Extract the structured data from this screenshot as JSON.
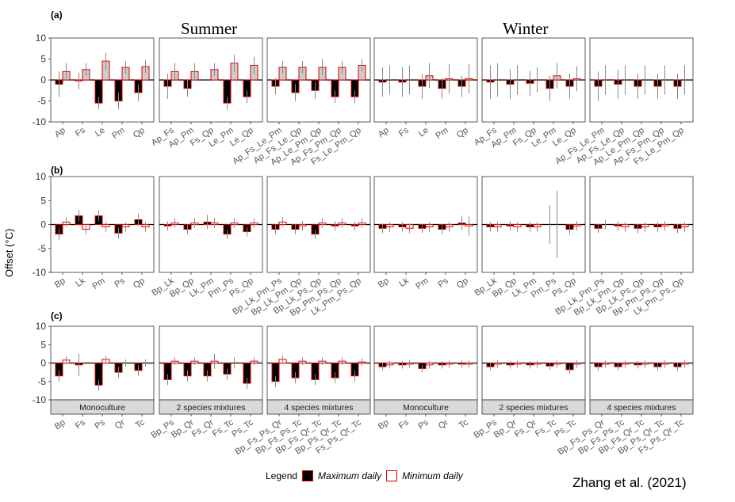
{
  "figure": {
    "y_axis_label": "Offset (°C)",
    "season_labels": [
      "Summer",
      "Winter"
    ],
    "credit": "Zhang et al. (2021)",
    "legend": {
      "title": "Legend",
      "max_label": "Maximum daily",
      "min_label": "Minimum daily"
    },
    "colors": {
      "max_fill": "#000000",
      "max_stroke": "#e00000",
      "min_fill": "#cccccc",
      "min_fill_open": "#ffffff",
      "min_stroke": "#e00000",
      "errorbar": "#888888",
      "strip": "#d9d9d9"
    }
  },
  "chart_data": [
    {
      "type": "bar",
      "row": "(a)",
      "season": "Summer",
      "diversity": "Monoculture",
      "ylim": [
        -10,
        10
      ],
      "yticks": [
        -10,
        -5,
        0,
        5,
        10
      ],
      "min_style": "grey",
      "categories": [
        "Ap",
        "Fs",
        "Le",
        "Pm",
        "Qp"
      ],
      "series": [
        {
          "name": "Maximum daily",
          "values": [
            -1.0,
            -0.2,
            -5.5,
            -5.0,
            -3.0
          ],
          "err": [
            3,
            2,
            1.5,
            2,
            2
          ]
        },
        {
          "name": "Minimum daily",
          "values": [
            2.0,
            2.5,
            4.5,
            3.0,
            3.2
          ],
          "err": [
            2,
            1.5,
            2,
            1.5,
            1.5
          ]
        }
      ]
    },
    {
      "type": "bar",
      "row": "(a)",
      "season": "Summer",
      "diversity": "2 species mixtures",
      "ylim": [
        -10,
        10
      ],
      "min_style": "grey",
      "categories": [
        "Ap_Fs",
        "Ap_Pm",
        "Fs_Qp",
        "Le_Pm",
        "Le_Qp"
      ],
      "series": [
        {
          "name": "Maximum daily",
          "values": [
            -1.5,
            -2.0,
            0,
            -5.5,
            -4.0
          ],
          "err": [
            3,
            2,
            0,
            1.5,
            1.5
          ]
        },
        {
          "name": "Minimum daily",
          "values": [
            2.0,
            2.0,
            2.5,
            4.0,
            3.5
          ],
          "err": [
            2,
            2,
            1.5,
            2,
            2
          ]
        }
      ]
    },
    {
      "type": "bar",
      "row": "(a)",
      "season": "Summer",
      "diversity": "4 species mixtures",
      "ylim": [
        -10,
        10
      ],
      "min_style": "grey",
      "categories": [
        "Ap_Fs_Le_Pm",
        "Ap_Fs_Le_Qp",
        "Ap_Le_Pm_Qp",
        "Ap_Fs_Pm_Qp",
        "Fs_Le_Pm_Qp"
      ],
      "series": [
        {
          "name": "Maximum daily",
          "values": [
            -1.5,
            -3.0,
            -2.5,
            -4.0,
            -4.0
          ],
          "err": [
            2,
            2,
            2,
            1.5,
            1.5
          ]
        },
        {
          "name": "Minimum daily",
          "values": [
            3.0,
            3.0,
            3.0,
            3.0,
            3.5
          ],
          "err": [
            1.5,
            1.5,
            2,
            1.5,
            1.5
          ]
        }
      ]
    },
    {
      "type": "bar",
      "row": "(a)",
      "season": "Winter",
      "diversity": "Monoculture",
      "ylim": [
        -10,
        10
      ],
      "min_style": "grey",
      "categories": [
        "Ap",
        "Fs",
        "Le",
        "Pm",
        "Qp"
      ],
      "series": [
        {
          "name": "Maximum daily",
          "values": [
            -0.5,
            -0.5,
            -1.5,
            -2.0,
            -1.5
          ],
          "err": [
            3.5,
            3.5,
            3,
            2.5,
            2.5
          ]
        },
        {
          "name": "Minimum daily",
          "values": [
            0,
            0,
            1.0,
            0.3,
            0.3
          ],
          "err": [
            3.5,
            3.5,
            3,
            3.5,
            3.5
          ]
        }
      ]
    },
    {
      "type": "bar",
      "row": "(a)",
      "season": "Winter",
      "diversity": "2 species mixtures",
      "ylim": [
        -10,
        10
      ],
      "min_style": "grey",
      "categories": [
        "Ap_Fs",
        "Ap_Pm",
        "Fs_Qp",
        "Le_Pm",
        "Le_Qp"
      ],
      "series": [
        {
          "name": "Maximum daily",
          "values": [
            -0.5,
            -1.0,
            -0.8,
            -2.0,
            -1.5
          ],
          "err": [
            4,
            3.5,
            3,
            3,
            3
          ]
        },
        {
          "name": "Minimum daily",
          "values": [
            0,
            0,
            0,
            1.0,
            0.3
          ],
          "err": [
            4,
            3.5,
            3,
            3,
            3
          ]
        }
      ]
    },
    {
      "type": "bar",
      "row": "(a)",
      "season": "Winter",
      "diversity": "4 species mixtures",
      "ylim": [
        -10,
        10
      ],
      "min_style": "grey",
      "categories": [
        "Ap_Fs_Le_Pm",
        "Ap_Fs_Le_Qp",
        "Ap_Le_Pm_Qp",
        "Ap_Fs_Pm_Qp",
        "Fs_Le_Pm_Qp"
      ],
      "series": [
        {
          "name": "Maximum daily",
          "values": [
            -1.5,
            -1.0,
            -1.5,
            -1.5,
            -1.5
          ],
          "err": [
            3.5,
            3.5,
            3,
            3,
            3
          ]
        },
        {
          "name": "Minimum daily",
          "values": [
            0,
            0,
            0,
            0,
            0
          ],
          "err": [
            3.5,
            3.5,
            3.5,
            3.5,
            3.5
          ]
        }
      ]
    },
    {
      "type": "bar",
      "row": "(b)",
      "season": "Summer",
      "diversity": "Monoculture",
      "ylim": [
        -10,
        10
      ],
      "min_style": "open",
      "categories": [
        "Bp",
        "Lk",
        "Pm",
        "Ps",
        "Qp"
      ],
      "series": [
        {
          "name": "Maximum daily",
          "values": [
            -2.0,
            1.8,
            1.8,
            -1.8,
            1.0
          ],
          "err": [
            1.2,
            1.2,
            1.2,
            1.2,
            1.2
          ]
        },
        {
          "name": "Minimum daily",
          "values": [
            0.5,
            -1.0,
            -0.5,
            -0.5,
            -0.5
          ],
          "err": [
            1,
            1,
            1,
            1,
            1
          ]
        }
      ]
    },
    {
      "type": "bar",
      "row": "(b)",
      "season": "Summer",
      "diversity": "2 species mixtures",
      "ylim": [
        -10,
        10
      ],
      "min_style": "open",
      "categories": [
        "Bp_Lk",
        "Bp_Qp",
        "Lk_Pm",
        "Pm_Ps",
        "Ps_Qp"
      ],
      "series": [
        {
          "name": "Maximum daily",
          "values": [
            -0.3,
            -1.0,
            0.5,
            -2.0,
            -1.5
          ],
          "err": [
            1,
            1,
            1.5,
            1,
            1
          ]
        },
        {
          "name": "Minimum daily",
          "values": [
            0.3,
            0.3,
            0.3,
            0.3,
            0.3
          ],
          "err": [
            1,
            1,
            1,
            1,
            1
          ]
        }
      ]
    },
    {
      "type": "bar",
      "row": "(b)",
      "season": "Summer",
      "diversity": "4 species mixtures",
      "ylim": [
        -10,
        10
      ],
      "min_style": "open",
      "categories": [
        "Bp_Lk_Pm_Ps",
        "Bp_Lk_Pm_Qp",
        "Bp_Lk_Ps_Qp",
        "Bp_Pm_Ps_Qp",
        "Lk_Pm_Ps_Qp"
      ],
      "series": [
        {
          "name": "Maximum daily",
          "values": [
            -1.0,
            -1.0,
            -2.0,
            -0.3,
            -0.3
          ],
          "err": [
            1,
            1,
            1,
            1,
            1
          ]
        },
        {
          "name": "Minimum daily",
          "values": [
            0.5,
            -0.3,
            0.3,
            0.3,
            0.3
          ],
          "err": [
            1,
            1,
            1,
            1,
            1
          ]
        }
      ]
    },
    {
      "type": "bar",
      "row": "(b)",
      "season": "Winter",
      "diversity": "Monoculture",
      "ylim": [
        -10,
        10
      ],
      "min_style": "open",
      "categories": [
        "Bp",
        "Lk",
        "Pm",
        "Ps",
        "Qp"
      ],
      "series": [
        {
          "name": "Maximum daily",
          "values": [
            -0.8,
            -0.5,
            -0.8,
            -1.0,
            0.3
          ],
          "err": [
            1,
            1,
            1,
            1,
            1.5
          ]
        },
        {
          "name": "Minimum daily",
          "values": [
            -0.5,
            -0.8,
            -0.5,
            -0.5,
            -0.3
          ],
          "err": [
            1,
            1,
            1,
            1,
            2
          ]
        }
      ]
    },
    {
      "type": "bar",
      "row": "(b)",
      "season": "Winter",
      "diversity": "2 species mixtures",
      "ylim": [
        -10,
        10
      ],
      "min_style": "open",
      "categories": [
        "Bp_Lk",
        "Bp_Qp",
        "Lk_Pm",
        "Pm_Ps",
        "Ps_Qp"
      ],
      "series": [
        {
          "name": "Maximum daily",
          "values": [
            -0.5,
            -0.3,
            -0.5,
            0,
            -1.0
          ],
          "err": [
            1,
            1,
            1,
            4,
            1
          ]
        },
        {
          "name": "Minimum daily",
          "values": [
            -0.5,
            -0.5,
            -0.5,
            0,
            -0.3
          ],
          "err": [
            1,
            1,
            1,
            7,
            1
          ]
        }
      ]
    },
    {
      "type": "bar",
      "row": "(b)",
      "season": "Winter",
      "diversity": "4 species mixtures",
      "ylim": [
        -10,
        10
      ],
      "min_style": "open",
      "categories": [
        "Bp_Lk_Pm_Ps",
        "Bp_Lk_Pm_Qp",
        "Bp_Lk_Ps_Qp",
        "Bp_Pm_Ps_Qp",
        "Lk_Pm_Ps_Qp"
      ],
      "series": [
        {
          "name": "Maximum daily",
          "values": [
            -0.8,
            -0.3,
            -0.8,
            -0.5,
            -0.8
          ],
          "err": [
            1,
            1,
            1,
            1,
            1
          ]
        },
        {
          "name": "Minimum daily",
          "values": [
            0,
            -0.5,
            -0.5,
            -0.3,
            -0.5
          ],
          "err": [
            1,
            1,
            1,
            1,
            1
          ]
        }
      ]
    },
    {
      "type": "bar",
      "row": "(c)",
      "season": "Summer",
      "diversity": "Monoculture",
      "ylim": [
        -10,
        10
      ],
      "min_style": "open",
      "categories": [
        "Bp",
        "Fs",
        "Ps",
        "Qr",
        "Tc"
      ],
      "series": [
        {
          "name": "Maximum daily",
          "values": [
            -3.5,
            -0.5,
            -6.0,
            -2.5,
            -2.0
          ],
          "err": [
            1.5,
            3,
            1.5,
            1.5,
            1.5
          ]
        },
        {
          "name": "Minimum daily",
          "values": [
            0.8,
            0,
            1.0,
            0,
            0
          ],
          "err": [
            1,
            0,
            1,
            1,
            1
          ]
        }
      ]
    },
    {
      "type": "bar",
      "row": "(c)",
      "season": "Summer",
      "diversity": "2 species mixtures",
      "ylim": [
        -10,
        10
      ],
      "min_style": "open",
      "categories": [
        "Bp_Ps",
        "Bp_Qr",
        "Fs_Qr",
        "Fs_Tc",
        "Ps_Tc"
      ],
      "series": [
        {
          "name": "Maximum daily",
          "values": [
            -4.5,
            -3.5,
            -3.5,
            -3.0,
            -5.5
          ],
          "err": [
            1.5,
            1.5,
            1.5,
            1.5,
            1.5
          ]
        },
        {
          "name": "Minimum daily",
          "values": [
            0.5,
            0.5,
            0.5,
            0,
            0.5
          ],
          "err": [
            1,
            1,
            2,
            1.5,
            1
          ]
        }
      ]
    },
    {
      "type": "bar",
      "row": "(c)",
      "season": "Summer",
      "diversity": "4 species mixtures",
      "ylim": [
        -10,
        10
      ],
      "min_style": "open",
      "categories": [
        "Bp_Fs_Ps_Qr",
        "Bp_Fs_Ps_Tc",
        "Bp_Fs_Qr_Tc",
        "Bp_Ps_Qr_Tc",
        "Fs_Ps_Qr_Tc"
      ],
      "series": [
        {
          "name": "Maximum daily",
          "values": [
            -5.0,
            -4.0,
            -4.5,
            -4.0,
            -3.5
          ],
          "err": [
            1.5,
            1.5,
            1.5,
            1.5,
            1.5
          ]
        },
        {
          "name": "Minimum daily",
          "values": [
            1.0,
            0.5,
            0.5,
            0.5,
            0.3
          ],
          "err": [
            1,
            1,
            1,
            1,
            1
          ]
        }
      ]
    },
    {
      "type": "bar",
      "row": "(c)",
      "season": "Winter",
      "diversity": "Monoculture",
      "ylim": [
        -10,
        10
      ],
      "min_style": "open",
      "categories": [
        "Bp",
        "Fs",
        "Ps",
        "Qr",
        "Tc"
      ],
      "series": [
        {
          "name": "Maximum daily",
          "values": [
            -1.0,
            -0.5,
            -1.5,
            -0.5,
            -0.3
          ],
          "err": [
            1,
            1,
            1,
            1,
            1
          ]
        },
        {
          "name": "Minimum daily",
          "values": [
            -0.5,
            -0.3,
            -0.5,
            -0.3,
            -0.3
          ],
          "err": [
            1,
            1,
            1,
            1,
            1
          ]
        }
      ]
    },
    {
      "type": "bar",
      "row": "(c)",
      "season": "Winter",
      "diversity": "2 species mixtures",
      "ylim": [
        -10,
        10
      ],
      "min_style": "open",
      "categories": [
        "Bp_Ps",
        "Bp_Qr",
        "Fs_Qr",
        "Fs_Tc",
        "Ps_Tc"
      ],
      "series": [
        {
          "name": "Maximum daily",
          "values": [
            -1.0,
            -0.5,
            -0.5,
            -0.8,
            -1.8
          ],
          "err": [
            1,
            1,
            1,
            1,
            1
          ]
        },
        {
          "name": "Minimum daily",
          "values": [
            -0.3,
            -0.3,
            -0.3,
            -0.3,
            -0.3
          ],
          "err": [
            1,
            1,
            1,
            1,
            1
          ]
        }
      ]
    },
    {
      "type": "bar",
      "row": "(c)",
      "season": "Winter",
      "diversity": "4 species mixtures",
      "ylim": [
        -10,
        10
      ],
      "min_style": "open",
      "categories": [
        "Bp_Fs_Ps_Qr",
        "Bp_Fs_Ps_Tc",
        "Bp_Fs_Qr_Tc",
        "Bp_Ps_Qr_Tc",
        "Fs_Ps_Qr_Tc"
      ],
      "series": [
        {
          "name": "Maximum daily",
          "values": [
            -1.0,
            -1.0,
            -0.5,
            -1.0,
            -1.0
          ],
          "err": [
            1,
            1,
            1,
            1,
            1
          ]
        },
        {
          "name": "Minimum daily",
          "values": [
            -0.3,
            -0.3,
            -0.3,
            -0.3,
            -0.3
          ],
          "err": [
            1,
            1,
            1,
            1,
            1
          ]
        }
      ]
    }
  ]
}
